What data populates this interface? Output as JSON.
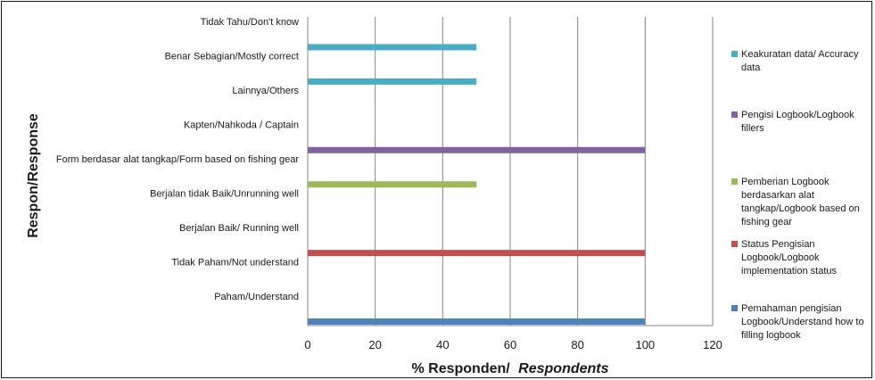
{
  "chart_data": {
    "type": "bar",
    "orientation": "horizontal",
    "categories": [
      "Paham/Understand",
      "Tidak Paham/Not understand",
      "Berjalan Baik/ Running well",
      "Berjalan tidak Baik/Unrunning well",
      "Form berdasar alat tangkap/Form based on fishing gear",
      "Kapten/Nahkoda / Captain",
      "Lainnya/Others",
      "Benar Sebagian/Mostly correct",
      "Tidak Tahu/Don't know"
    ],
    "bars": [
      {
        "category": "Paham/Understand",
        "series": 0,
        "value": 100
      },
      {
        "category": "Berjalan Baik/ Running well",
        "series": 1,
        "value": 100
      },
      {
        "category": "Form berdasar alat tangkap/Form based on fishing gear",
        "series": 2,
        "value": 50
      },
      {
        "category": "Kapten/Nahkoda / Captain",
        "series": 3,
        "value": 100
      },
      {
        "category": "Benar Sebagian/Mostly correct",
        "series": 4,
        "value": 50
      },
      {
        "category": "Tidak Tahu/Don't know",
        "series": 4,
        "value": 50
      }
    ],
    "series": [
      {
        "name": "Pemahaman pengisian Logbook/Understand how to filling logbook",
        "color": "#4f81bd",
        "legend_lines": [
          "Pemahaman pengisian",
          "Logbook/Understand how to",
          "filling logbook"
        ]
      },
      {
        "name": "Status Pengisian Logbook/Logbook implementation status",
        "color": "#c0504d",
        "legend_lines": [
          "Status Pengisian",
          "Logbook/Logbook",
          "implementation status"
        ]
      },
      {
        "name": "Pemberian Logbook berdasarkan alat tangkap/Logbook based on fishing gear",
        "color": "#9bbb59",
        "legend_lines": [
          "Pemberian Logbook",
          "berdasarkan alat",
          "tangkap/Logbook based on",
          "fishing gear"
        ]
      },
      {
        "name": "Pengisi Logbook/Logbook fillers",
        "color": "#8064a2",
        "legend_lines": [
          "Pengisi Logbook/Logbook",
          "fillers"
        ]
      },
      {
        "name": "Keakuratan data/ Accuracy data",
        "color": "#4bacc6",
        "legend_lines": [
          "Keakuratan data/ Accuracy",
          "data"
        ]
      }
    ],
    "xlim": [
      0,
      120
    ],
    "xticks": [
      "0",
      "20",
      "40",
      "60",
      "80",
      "100",
      "120"
    ],
    "xlabel_main": "% Responden/",
    "xlabel_italic": "Respondents",
    "ylabel": "Respon/Response",
    "grid": "vertical",
    "legend_position": "right"
  }
}
